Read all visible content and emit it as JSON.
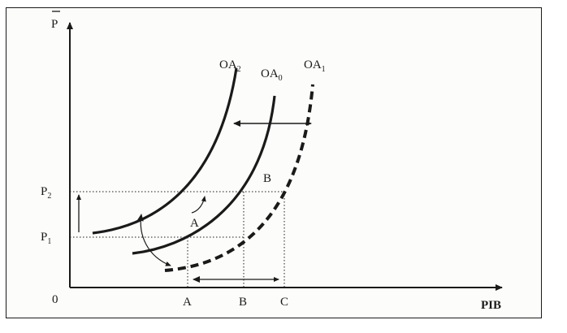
{
  "axes": {
    "y_label": "P",
    "x_label": "PIB",
    "origin": "0"
  },
  "price_levels": [
    {
      "base": "P",
      "sub": "2"
    },
    {
      "base": "P",
      "sub": "1"
    }
  ],
  "quantity_marks": [
    "A",
    "B",
    "C"
  ],
  "curves": [
    {
      "base": "OA",
      "sub": "2",
      "style": "solid"
    },
    {
      "base": "OA",
      "sub": "0",
      "style": "solid"
    },
    {
      "base": "OA",
      "sub": "1",
      "style": "dashed"
    }
  ],
  "points": [
    "A",
    "B"
  ],
  "colors": {
    "ink": "#1a1a1a",
    "background": "#ffffff"
  }
}
